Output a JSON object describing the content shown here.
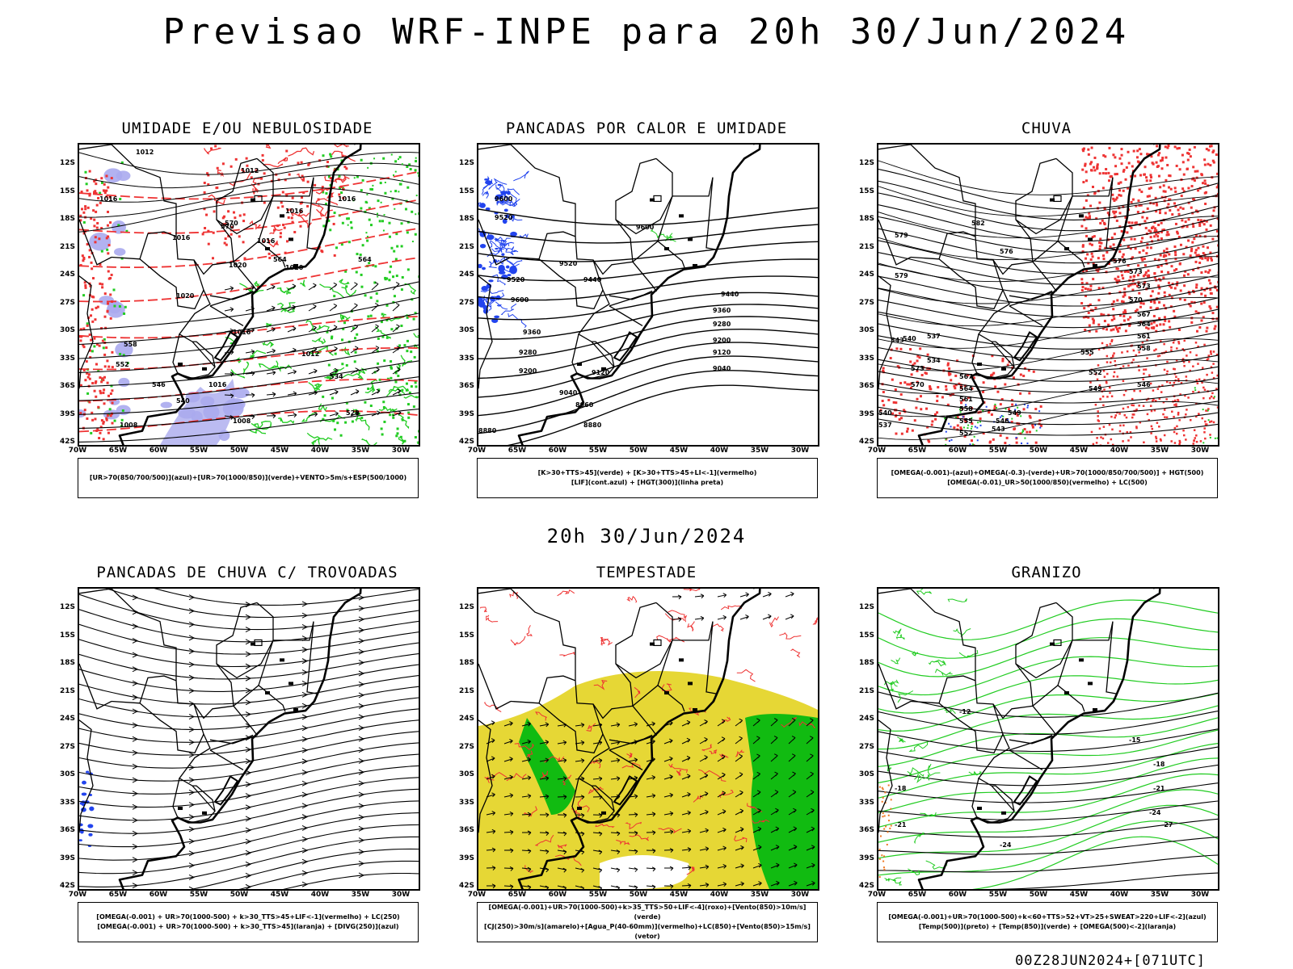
{
  "header": {
    "title": "Previsao WRF-INPE  para 20h 30/Jun/2024"
  },
  "mid_date": "20h 30/Jun/2024",
  "footer": "00Z28JUN2024+[071UTC]",
  "axes": {
    "lat_labels": [
      "12S",
      "15S",
      "18S",
      "21S",
      "24S",
      "27S",
      "30S",
      "33S",
      "36S",
      "39S",
      "42S"
    ],
    "lon_labels": [
      "70W",
      "65W",
      "60W",
      "55W",
      "50W",
      "45W",
      "40W",
      "35W",
      "30W"
    ]
  },
  "colors": {
    "red": "#ee3333",
    "green": "#22cc22",
    "blue": "#2244ee",
    "lavender": "#aaaaee",
    "yellow": "#e6d735",
    "bright_green": "#11bb11",
    "orange": "#ee7722",
    "black": "#000000"
  },
  "panels": [
    {
      "id": "umidade",
      "title": "UMIDADE E/OU NEBULOSIDADE",
      "legend": [
        "[UR>70(850/700/500)](azul)+[UR>70(1000/850)](verde)+VENTO>5m/s+ESP(500/1000)"
      ],
      "contour_labels": [
        "1012",
        "1012",
        "1016",
        "1016",
        "1016",
        "1016",
        "1016",
        "1020",
        "1020",
        "1020",
        "1016",
        "1012",
        "1016",
        "1008",
        "1008",
        "570",
        "570",
        "564",
        "564",
        "558",
        "552",
        "546",
        "540",
        "534",
        "528"
      ]
    },
    {
      "id": "pancadas_calor",
      "title": "PANCADAS POR CALOR E UMIDADE",
      "legend": [
        "[K>30+TTS>45](verde) + [K>30+TTS>45+LI<-1](vermelho)",
        "[LIF](cont.azul) + [HGT(300)](linha preta)"
      ],
      "contour_labels": [
        "9600",
        "9520",
        "9600",
        "9520",
        "9600",
        "9520",
        "9440",
        "9440",
        "9360",
        "9280",
        "9200",
        "9120",
        "9040",
        "9360",
        "9280",
        "9200",
        "9120",
        "9040",
        "8960",
        "8880",
        "8880"
      ]
    },
    {
      "id": "chuva",
      "title": "CHUVA",
      "legend": [
        "[OMEGA(-0.001)-(azul)+OMEGA(-0.3)-(verde)+UR>70(1000/850/700/500)] + HGT(500)",
        "[OMEGA(-0.01)_UR>50(1000/850)(vermelho) + LC(500)"
      ],
      "contour_labels": [
        "582",
        "579",
        "579",
        "576",
        "576",
        "573",
        "573",
        "570",
        "567",
        "564",
        "561",
        "558",
        "555",
        "552",
        "549",
        "546",
        "543",
        "540",
        "537",
        "534",
        "573",
        "570",
        "567",
        "564",
        "561",
        "558",
        "555",
        "552",
        "549",
        "546",
        "543",
        "540",
        "537"
      ]
    },
    {
      "id": "trovoadas",
      "title": "PANCADAS DE CHUVA C/ TROVOADAS",
      "legend": [
        "[OMEGA(-0.001) + UR>70(1000-500) + k>30_TTS>45+LIF<-1](vermelho) + LC(250)",
        "[OMEGA(-0.001) + UR>70(1000-500) + k>30_TTS>45](laranja) + [DIVG(250)](azul)"
      ],
      "contour_labels": []
    },
    {
      "id": "tempestade",
      "title": "TEMPESTADE",
      "legend": [
        "[OMEGA(-0.001)+UR>70(1000-500)+k>35_TTS>50+LIF<-4](roxo)+[Vento(850)>10m/s](verde)",
        "[CJ(250)>30m/s](amarelo)+[Agua_P(40-60mm)](vermelho)+LC(850)+[Vento(850)>15m/s](vetor)"
      ],
      "contour_labels": []
    },
    {
      "id": "granizo",
      "title": "GRANIZO",
      "legend": [
        "[OMEGA(-0.001)+UR>70(1000-500)+k<60+TTS>52+VT>25+SWEAT>220+LIF<-2](azul)",
        "[Temp(500)](preto) + [Temp(850)](verde) + [OMEGA(500)<-2](laranja)"
      ],
      "contour_labels": [
        "-12",
        "-15",
        "-18",
        "-21",
        "-24",
        "-27",
        "-24",
        "-21",
        "-18"
      ]
    }
  ]
}
